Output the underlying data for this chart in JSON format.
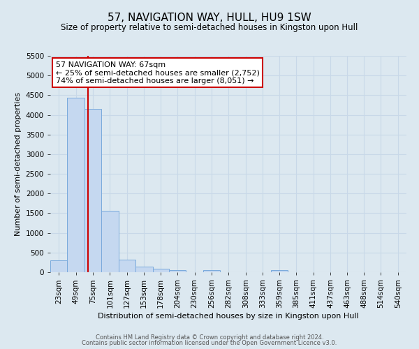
{
  "title": "57, NAVIGATION WAY, HULL, HU9 1SW",
  "subtitle": "Size of property relative to semi-detached houses in Kingston upon Hull",
  "bar_labels": [
    "23sqm",
    "49sqm",
    "75sqm",
    "101sqm",
    "127sqm",
    "153sqm",
    "178sqm",
    "204sqm",
    "230sqm",
    "256sqm",
    "282sqm",
    "308sqm",
    "333sqm",
    "359sqm",
    "385sqm",
    "411sqm",
    "437sqm",
    "463sqm",
    "488sqm",
    "514sqm",
    "540sqm"
  ],
  "bar_values": [
    295,
    4430,
    4150,
    1560,
    325,
    135,
    80,
    55,
    0,
    55,
    0,
    0,
    0,
    55,
    0,
    0,
    0,
    0,
    0,
    0,
    0
  ],
  "bar_color": "#c5d8f0",
  "bar_edge_color": "#7aaadc",
  "bin_edges": [
    10,
    36,
    62,
    88,
    114,
    140,
    166,
    191,
    217,
    243,
    269,
    295,
    321,
    346,
    372,
    398,
    424,
    450,
    475,
    501,
    527,
    553
  ],
  "xlabel": "Distribution of semi-detached houses by size in Kingston upon Hull",
  "ylabel": "Number of semi-detached properties",
  "ylim": [
    0,
    5500
  ],
  "yticks": [
    0,
    500,
    1000,
    1500,
    2000,
    2500,
    3000,
    3500,
    4000,
    4500,
    5000,
    5500
  ],
  "annotation_title": "57 NAVIGATION WAY: 67sqm",
  "annotation_line1": "← 25% of semi-detached houses are smaller (2,752)",
  "annotation_line2": "74% of semi-detached houses are larger (8,051) →",
  "annotation_box_color": "#ffffff",
  "annotation_box_edge_color": "#cc0000",
  "vline_color": "#cc0000",
  "vline_x": 67,
  "footer1": "Contains HM Land Registry data © Crown copyright and database right 2024.",
  "footer2": "Contains public sector information licensed under the Open Government Licence v3.0.",
  "grid_color": "#c8d8e8",
  "background_color": "#dce8f0",
  "title_fontsize": 11,
  "subtitle_fontsize": 8.5,
  "axis_label_fontsize": 8,
  "tick_fontsize": 7.5,
  "annotation_fontsize": 8,
  "footer_fontsize": 6
}
